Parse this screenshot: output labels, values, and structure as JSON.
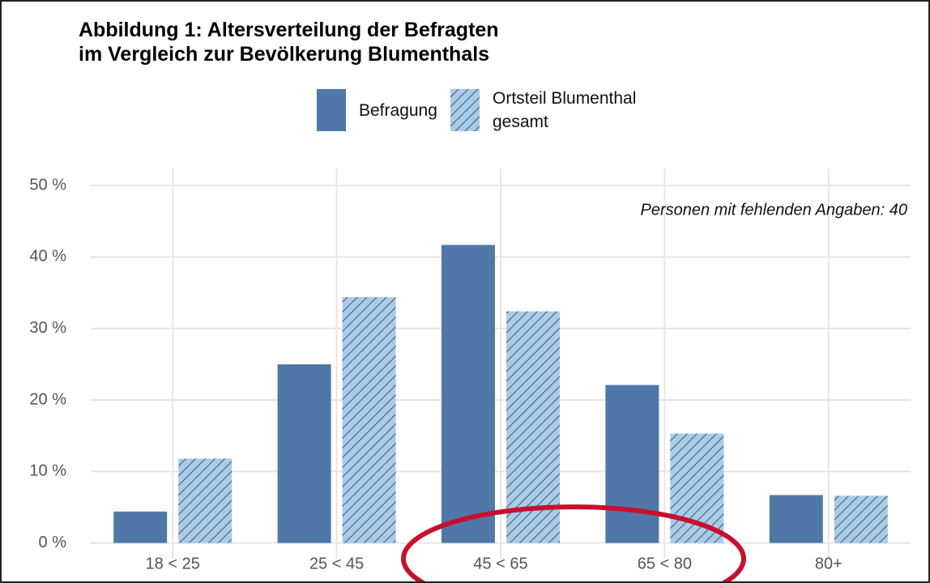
{
  "chart_data": {
    "type": "bar",
    "title": "Abbildung 1: Altersverteilung der Befragten\nim Vergleich zur Bevölkerung Blumenthals",
    "annotation": "Personen mit fehlenden Angaben: 40",
    "categories": [
      "18 < 25",
      "25 < 45",
      "45 < 65",
      "65 < 80",
      "80+"
    ],
    "series": [
      {
        "name": "Befragung",
        "color": "#4f78a8",
        "values": [
          4.4,
          25.0,
          41.7,
          22.1,
          6.7
        ]
      },
      {
        "name": "Ortsteil Blumenthal\ngesamt",
        "color": "#a9cbe6",
        "pattern": "hatch",
        "hatch_color": "#4f6e96",
        "values": [
          11.8,
          34.4,
          32.4,
          15.3,
          6.6
        ]
      }
    ],
    "ylim": [
      -2.2,
      52.4
    ],
    "yticks": [
      {
        "value": 0,
        "label": "0 %"
      },
      {
        "value": 10,
        "label": "10 %"
      },
      {
        "value": 20,
        "label": "20 %"
      },
      {
        "value": 30,
        "label": "30 %"
      },
      {
        "value": 40,
        "label": "40 %"
      },
      {
        "value": 50,
        "label": "50 %"
      }
    ],
    "grid": true,
    "legend": "top"
  }
}
